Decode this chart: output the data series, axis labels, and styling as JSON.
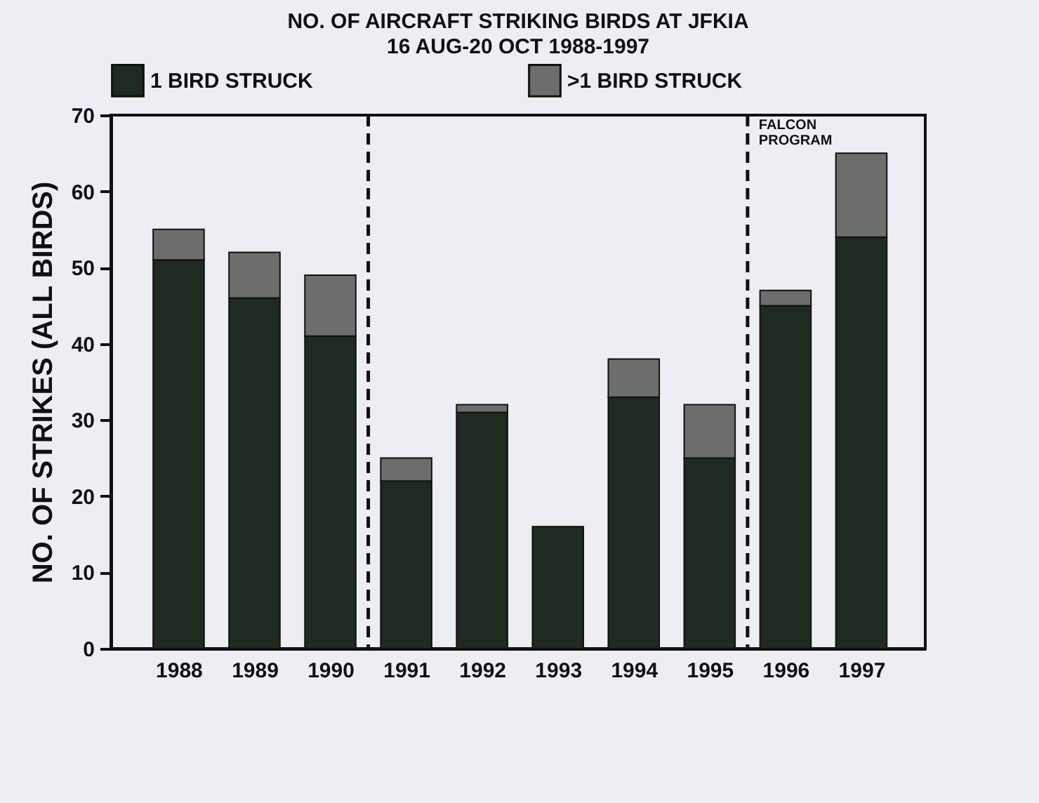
{
  "chart_data": {
    "type": "bar",
    "title": "NO. OF AIRCRAFT STRIKING BIRDS AT JFKIA",
    "subtitle": "16 AUG-20 OCT 1988-1997",
    "ylabel": "NO. OF STRIKES (ALL BIRDS)",
    "x": [
      1988,
      1989,
      1990,
      1991,
      1992,
      1993,
      1994,
      1995,
      1996,
      1997
    ],
    "xlim": [
      1987.2,
      1997.75
    ],
    "xticks": [
      1988,
      1989,
      1990,
      1991,
      1992,
      1993,
      1994,
      1995,
      1996,
      1997
    ],
    "ylim": [
      0,
      70
    ],
    "yticks": [
      0,
      10,
      20,
      30,
      40,
      50,
      60,
      70
    ],
    "stacked": true,
    "legend": "top",
    "grid": false,
    "series": [
      {
        "name": "1 BIRD STRUCK",
        "color": "#1f2a20",
        "values": [
          51,
          46,
          41,
          22,
          31,
          16,
          33,
          25,
          45,
          54
        ]
      },
      {
        "name": ">1 BIRD STRUCK",
        "color": "#6b6e6b",
        "values": [
          4,
          6,
          8,
          3,
          1,
          0,
          5,
          7,
          2,
          11
        ]
      }
    ],
    "ref_lines": [
      {
        "axis": "x",
        "value": 1990.5,
        "label": null,
        "line_style": "dashed"
      },
      {
        "axis": "x",
        "value": 1995.5,
        "label": "FALCON PROGRAM",
        "line_style": "dashed"
      }
    ]
  }
}
